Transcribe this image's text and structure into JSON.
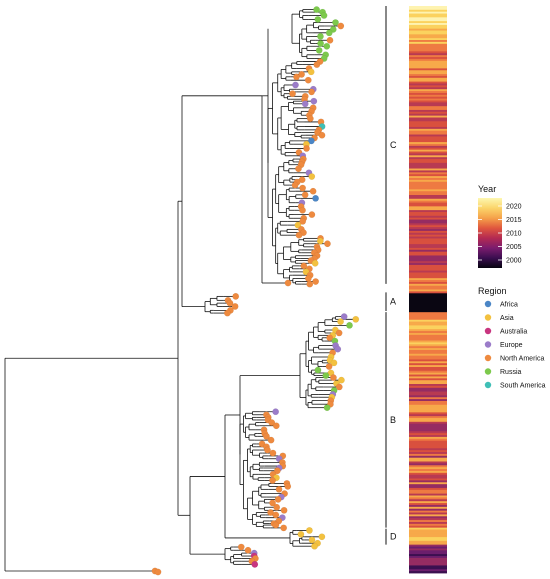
{
  "figure": {
    "clades": [
      {
        "label": "C",
        "span": [
          0.0,
          0.49
        ]
      },
      {
        "label": "A",
        "span": [
          0.505,
          0.538
        ]
      },
      {
        "label": "B",
        "span": [
          0.54,
          0.92
        ]
      },
      {
        "label": "D",
        "span": [
          0.922,
          0.95
        ]
      }
    ],
    "legend": {
      "year": {
        "title": "Year",
        "ticks": [
          "2020",
          "2015",
          "2010",
          "2005",
          "2000"
        ],
        "gradient_colors": [
          "#fdf7b0",
          "#fbd56a",
          "#f5a24a",
          "#e0573e",
          "#b42a52",
          "#7b1c6e",
          "#3a0e4f",
          "#06040f"
        ]
      },
      "region": {
        "title": "Region",
        "items": [
          {
            "label": "Africa",
            "color": "#4b86c6"
          },
          {
            "label": "Asia",
            "color": "#f3c13f"
          },
          {
            "label": "Australia",
            "color": "#c8357f"
          },
          {
            "label": "Europe",
            "color": "#9b7cc9"
          },
          {
            "label": "North America",
            "color": "#ee8a3f"
          },
          {
            "label": "Russia",
            "color": "#7cc94c"
          },
          {
            "label": "South America",
            "color": "#3fbfb6"
          }
        ]
      }
    },
    "heat_colors": [
      "#fef3b0",
      "#fbd25e",
      "#f7a94a",
      "#ee7a42",
      "#d9503e",
      "#b83a52",
      "#952c62",
      "#6b1e6c",
      "#3b1050",
      "#0a0612"
    ]
  }
}
